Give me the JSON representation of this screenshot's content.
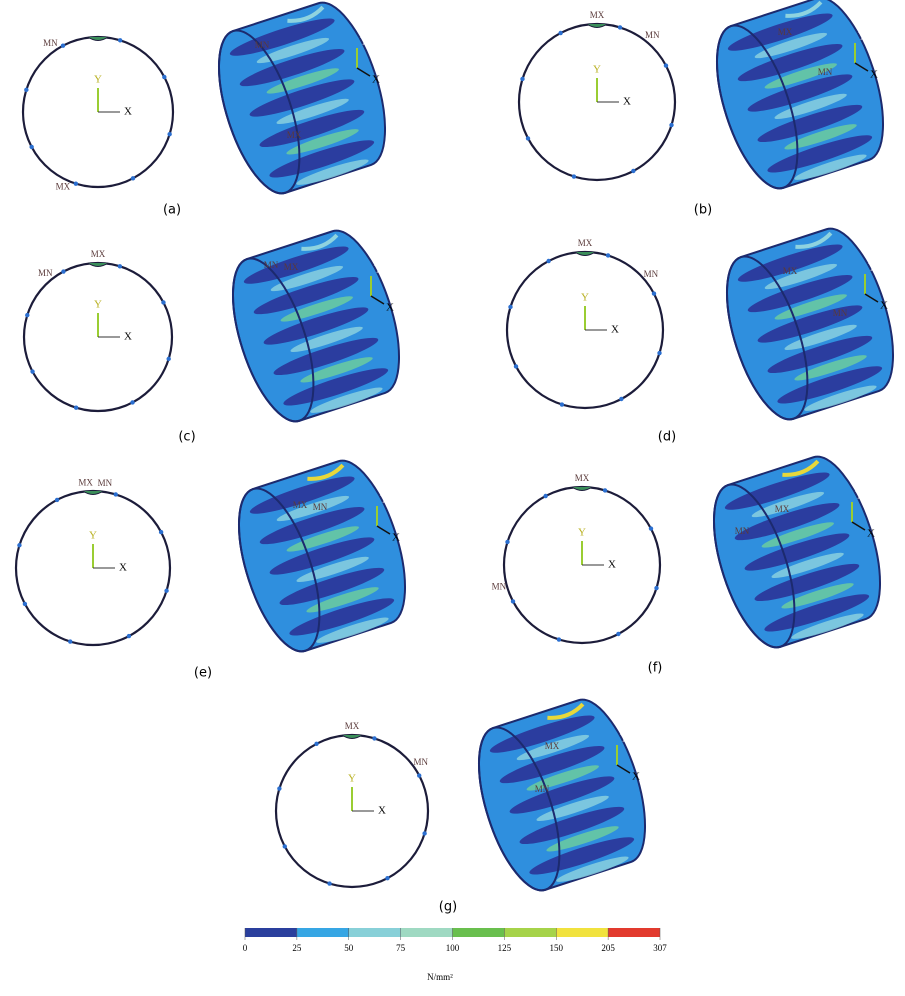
{
  "panels": [
    {
      "label": "(a)",
      "ring_labels": [
        "MN",
        "MX"
      ],
      "cylinder_labels": [
        "MN",
        "MX"
      ]
    },
    {
      "label": "(b)",
      "ring_labels": [
        "MX",
        "MN"
      ],
      "cylinder_labels": [
        "MX",
        "MN"
      ]
    },
    {
      "label": "(c)",
      "ring_labels": [
        "MX",
        "MN"
      ],
      "cylinder_labels": [
        "MN",
        "MX"
      ]
    },
    {
      "label": "(d)",
      "ring_labels": [
        "MX",
        "MN"
      ],
      "cylinder_labels": [
        "MX",
        "MN"
      ]
    },
    {
      "label": "(e)",
      "ring_labels": [
        "MX",
        "MN"
      ],
      "cylinder_labels": [
        "MX",
        "MN"
      ]
    },
    {
      "label": "(f)",
      "ring_labels": [
        "MX",
        "MN"
      ],
      "cylinder_labels": [
        "MX",
        "MN"
      ]
    },
    {
      "label": "(g)",
      "ring_labels": [
        "MX",
        "MN"
      ],
      "cylinder_labels": [
        "MX",
        "MN"
      ]
    }
  ],
  "axes": {
    "x": "X",
    "y": "Y"
  },
  "colorbar": {
    "ticks": [
      0,
      25,
      50,
      75,
      100,
      125,
      150,
      205,
      307
    ],
    "unit": "N/mm²"
  }
}
